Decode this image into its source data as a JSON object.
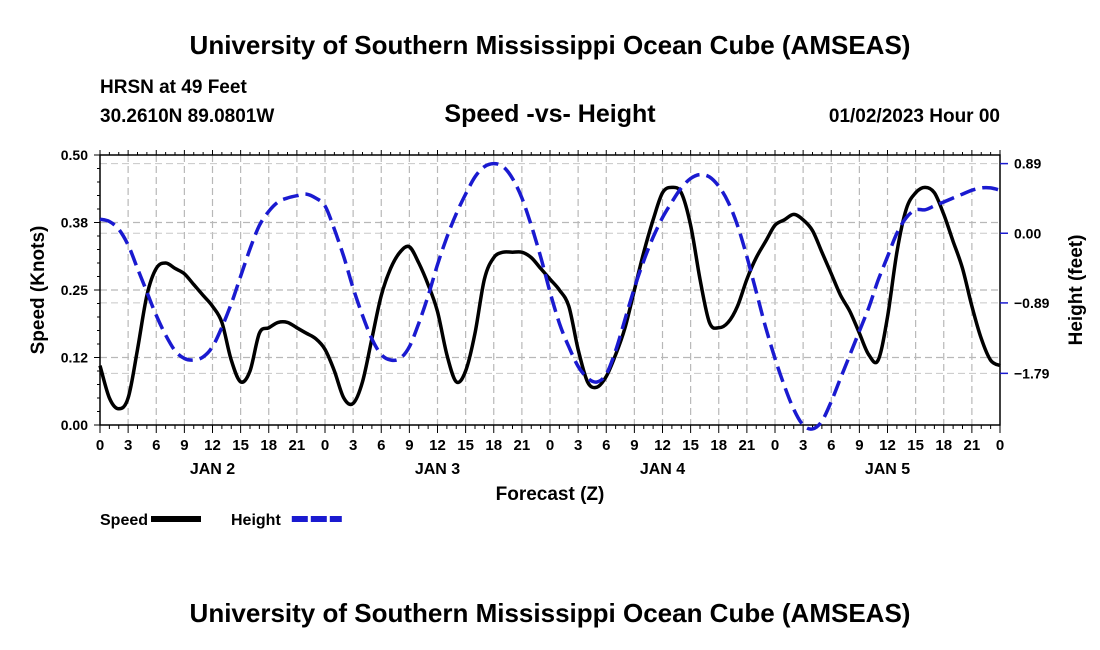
{
  "header": {
    "top_title": "University of Southern Mississippi Ocean Cube (AMSEAS)",
    "station": "HRSN at 49 Feet",
    "coords": "30.2610N  89.0801W",
    "chart_title": "Speed -vs- Height",
    "datetime": "01/02/2023 Hour 00",
    "bottom_title": "University of Southern Mississippi Ocean Cube (AMSEAS)"
  },
  "chart_data": {
    "type": "line",
    "xlabel": "Forecast (Z)",
    "ylabel_left": "Speed (Knots)",
    "ylabel_right": "Height (feet)",
    "x_range": [
      0,
      96
    ],
    "ylim_left": [
      0,
      0.5
    ],
    "ylim_right": [
      -2.45,
      1.0
    ],
    "left_ticks": [
      0.0,
      0.125,
      0.25,
      0.375,
      0.5
    ],
    "left_tick_labels": [
      "0.00",
      "0.12",
      "0.25",
      "0.38",
      "0.50"
    ],
    "right_ticks": [
      0.89,
      0.0,
      -0.89,
      -1.79
    ],
    "right_tick_labels": [
      "0.89",
      "0.00",
      "-0.89",
      "-1.79"
    ],
    "x_tick_labels": [
      "0",
      "3",
      "6",
      "9",
      "12",
      "15",
      "18",
      "21",
      "0",
      "3",
      "6",
      "9",
      "12",
      "15",
      "18",
      "21",
      "0",
      "3",
      "6",
      "9",
      "12",
      "15",
      "18",
      "21",
      "0",
      "3",
      "6",
      "9",
      "12",
      "15",
      "18",
      "21",
      "0"
    ],
    "day_labels": [
      {
        "hour": 12,
        "label": "JAN 2"
      },
      {
        "hour": 36,
        "label": "JAN 3"
      },
      {
        "hour": 60,
        "label": "JAN 4"
      },
      {
        "hour": 84,
        "label": "JAN 5"
      }
    ],
    "legend": [
      {
        "name": "Speed",
        "color": "#000000",
        "style": "solid"
      },
      {
        "name": "Height",
        "color": "#1a1ad0",
        "style": "dashed"
      }
    ],
    "series": [
      {
        "name": "Speed",
        "axis": "left",
        "color": "#000000",
        "x": [
          0,
          1,
          2,
          3,
          4,
          5,
          6,
          7,
          8,
          9,
          10,
          11,
          12,
          13,
          14,
          15,
          16,
          17,
          18,
          19,
          20,
          21,
          22,
          23,
          24,
          25,
          26,
          27,
          28,
          29,
          30,
          31,
          32,
          33,
          34,
          35,
          36,
          37,
          38,
          39,
          40,
          41,
          42,
          43,
          44,
          45,
          46,
          47,
          48,
          49,
          50,
          51,
          52,
          53,
          54,
          55,
          56,
          57,
          58,
          59,
          60,
          61,
          62,
          63,
          64,
          65,
          66,
          67,
          68,
          69,
          70,
          71,
          72,
          73,
          74,
          75,
          76,
          77,
          78,
          79,
          80,
          81,
          82,
          83,
          84,
          85,
          86,
          87,
          88,
          89,
          90,
          91,
          92,
          93,
          94,
          95,
          96
        ],
        "values": [
          0.11,
          0.05,
          0.03,
          0.05,
          0.14,
          0.24,
          0.29,
          0.3,
          0.29,
          0.28,
          0.26,
          0.24,
          0.22,
          0.19,
          0.12,
          0.08,
          0.1,
          0.17,
          0.18,
          0.19,
          0.19,
          0.18,
          0.17,
          0.16,
          0.14,
          0.1,
          0.05,
          0.04,
          0.08,
          0.16,
          0.24,
          0.29,
          0.32,
          0.33,
          0.3,
          0.26,
          0.21,
          0.13,
          0.08,
          0.1,
          0.17,
          0.27,
          0.31,
          0.32,
          0.32,
          0.32,
          0.31,
          0.29,
          0.27,
          0.25,
          0.22,
          0.14,
          0.08,
          0.07,
          0.09,
          0.13,
          0.18,
          0.25,
          0.32,
          0.38,
          0.43,
          0.44,
          0.43,
          0.37,
          0.27,
          0.19,
          0.18,
          0.19,
          0.22,
          0.27,
          0.31,
          0.34,
          0.37,
          0.38,
          0.39,
          0.38,
          0.36,
          0.32,
          0.28,
          0.24,
          0.21,
          0.17,
          0.13,
          0.12,
          0.2,
          0.32,
          0.4,
          0.43,
          0.44,
          0.43,
          0.39,
          0.34,
          0.29,
          0.22,
          0.16,
          0.12,
          0.11
        ]
      },
      {
        "name": "Height",
        "axis": "right",
        "color": "#1a1ad0",
        "x": [
          0,
          1,
          2,
          3,
          4,
          5,
          6,
          7,
          8,
          9,
          10,
          11,
          12,
          13,
          14,
          15,
          16,
          17,
          18,
          19,
          20,
          21,
          22,
          23,
          24,
          25,
          26,
          27,
          28,
          29,
          30,
          31,
          32,
          33,
          34,
          35,
          36,
          37,
          38,
          39,
          40,
          41,
          42,
          43,
          44,
          45,
          46,
          47,
          48,
          49,
          50,
          51,
          52,
          53,
          54,
          55,
          56,
          57,
          58,
          59,
          60,
          61,
          62,
          63,
          64,
          65,
          66,
          67,
          68,
          69,
          70,
          71,
          72,
          73,
          74,
          75,
          76,
          77,
          78,
          79,
          80,
          81,
          82,
          83,
          84,
          85,
          86,
          87,
          88,
          89,
          90,
          91,
          92,
          93,
          94,
          95,
          96
        ],
        "values": [
          0.18,
          0.15,
          0.05,
          -0.15,
          -0.45,
          -0.75,
          -1.05,
          -1.3,
          -1.5,
          -1.6,
          -1.62,
          -1.58,
          -1.45,
          -1.2,
          -0.9,
          -0.55,
          -0.2,
          0.1,
          0.28,
          0.4,
          0.45,
          0.48,
          0.5,
          0.45,
          0.35,
          0.05,
          -0.3,
          -0.7,
          -1.05,
          -1.35,
          -1.55,
          -1.62,
          -1.6,
          -1.45,
          -1.15,
          -0.8,
          -0.4,
          -0.05,
          0.25,
          0.5,
          0.72,
          0.85,
          0.89,
          0.85,
          0.7,
          0.45,
          0.1,
          -0.3,
          -0.75,
          -1.15,
          -1.45,
          -1.7,
          -1.85,
          -1.9,
          -1.8,
          -1.5,
          -1.1,
          -0.7,
          -0.35,
          -0.05,
          0.2,
          0.4,
          0.58,
          0.7,
          0.75,
          0.72,
          0.6,
          0.4,
          0.1,
          -0.3,
          -0.75,
          -1.2,
          -1.6,
          -1.95,
          -2.25,
          -2.45,
          -2.5,
          -2.4,
          -2.15,
          -1.85,
          -1.55,
          -1.25,
          -0.95,
          -0.6,
          -0.3,
          0.0,
          0.2,
          0.3,
          0.3,
          0.35,
          0.4,
          0.45,
          0.5,
          0.55,
          0.58,
          0.58,
          0.55
        ]
      }
    ]
  }
}
